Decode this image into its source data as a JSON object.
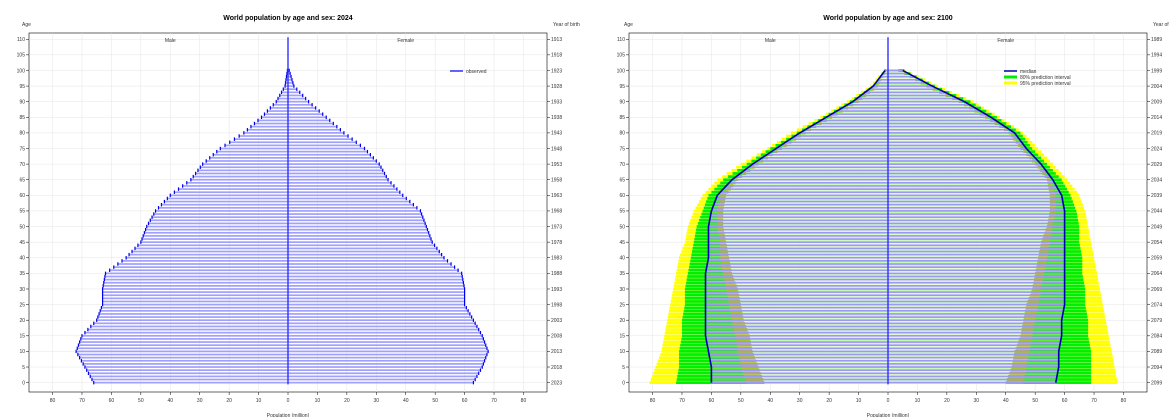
{
  "chart_data": [
    {
      "type": "bar",
      "title": "World population by age and sex: 2024",
      "ylabel_left": "Age",
      "ylabel_right": "Year of birth",
      "xlabel": "Population (million)",
      "male_label": "Male",
      "female_label": "Female",
      "xlim": [
        -88,
        88
      ],
      "xticks": [
        -80,
        -70,
        -60,
        -50,
        -40,
        -30,
        -20,
        -10,
        0,
        10,
        20,
        30,
        40,
        50,
        60,
        70,
        80
      ],
      "xtick_labels": [
        "80",
        "70",
        "60",
        "50",
        "40",
        "30",
        "20",
        "10",
        "0",
        "10",
        "20",
        "30",
        "40",
        "50",
        "60",
        "70",
        "80"
      ],
      "ylim": [
        -3,
        112
      ],
      "age_ticks": [
        0,
        5,
        10,
        15,
        20,
        25,
        30,
        35,
        40,
        45,
        50,
        55,
        60,
        65,
        70,
        75,
        80,
        85,
        90,
        95,
        100,
        105,
        110
      ],
      "birth_year_labels": [
        "2023",
        "2018",
        "2013",
        "2008",
        "2003",
        "1998",
        "1993",
        "1988",
        "1983",
        "1978",
        "1973",
        "1968",
        "1963",
        "1958",
        "1953",
        "1948",
        "1943",
        "1938",
        "1933",
        "1928",
        "1923",
        "1918",
        "1913"
      ],
      "legend": [
        "observed"
      ],
      "legend_position": "top-right",
      "grid": true,
      "colors": {
        "observed": "#0000ff"
      },
      "ages": [
        0,
        5,
        10,
        15,
        20,
        25,
        30,
        35,
        40,
        45,
        50,
        55,
        60,
        65,
        70,
        75,
        80,
        85,
        90,
        95,
        100,
        105,
        110
      ],
      "series": [
        {
          "name": "observed",
          "male": [
            66,
            69,
            72,
            70,
            65,
            63,
            63,
            62,
            55,
            50,
            48,
            45,
            40,
            33,
            29,
            23,
            15,
            9,
            4,
            1,
            0.2,
            0,
            0
          ],
          "female": [
            63,
            66,
            68,
            66,
            63,
            60,
            60,
            59,
            53,
            49,
            47,
            45,
            39,
            34,
            31,
            26,
            19,
            13,
            7,
            2,
            0.4,
            0,
            0
          ]
        }
      ]
    },
    {
      "type": "bar",
      "title": "World population by age and sex: 2100",
      "ylabel_left": "Age",
      "ylabel_right": "Year of bir",
      "xlabel": "Population (million)",
      "male_label": "Male",
      "female_label": "Female",
      "xlim": [
        -88,
        88
      ],
      "xticks": [
        -80,
        -70,
        -60,
        -50,
        -40,
        -30,
        -20,
        -10,
        0,
        10,
        20,
        30,
        40,
        50,
        60,
        70,
        80
      ],
      "xtick_labels": [
        "80",
        "70",
        "60",
        "50",
        "40",
        "30",
        "20",
        "10",
        "0",
        "10",
        "20",
        "30",
        "40",
        "50",
        "60",
        "70",
        "80"
      ],
      "ylim": [
        -3,
        112
      ],
      "age_ticks": [
        0,
        5,
        10,
        15,
        20,
        25,
        30,
        35,
        40,
        45,
        50,
        55,
        60,
        65,
        70,
        75,
        80,
        85,
        90,
        95,
        100,
        105,
        110
      ],
      "birth_year_labels": [
        "2099",
        "2094",
        "2089",
        "2084",
        "2079",
        "2074",
        "2069",
        "2064",
        "2059",
        "2054",
        "2049",
        "2044",
        "2039",
        "2034",
        "2029",
        "2024",
        "2019",
        "2014",
        "2009",
        "2004",
        "1999",
        "1994",
        "1989"
      ],
      "legend": [
        "median",
        "80% prediction interval",
        "95% prediction interval"
      ],
      "legend_position": "top-right",
      "grid": true,
      "colors": {
        "median": "#0000aa",
        "pi80": "#00ee00",
        "pi95": "#ffff00",
        "bars": "#9a9aee",
        "inner": "#c8aa30"
      },
      "ages": [
        0,
        5,
        10,
        15,
        20,
        25,
        30,
        35,
        40,
        45,
        50,
        55,
        60,
        65,
        70,
        75,
        80,
        85,
        90,
        95,
        100,
        105,
        110
      ],
      "series": [
        {
          "name": "median",
          "male": [
            60,
            60,
            61,
            62,
            62,
            62,
            62,
            62,
            61,
            61,
            61,
            60,
            58,
            53,
            46,
            38,
            30,
            21,
            12,
            5,
            1,
            0.2,
            0
          ],
          "female": [
            57,
            58,
            58,
            59,
            59,
            60,
            60,
            60,
            60,
            60,
            60,
            60,
            59,
            56,
            52,
            47,
            43,
            35,
            26,
            15,
            5,
            1,
            0
          ]
        },
        {
          "name": "pi80_low",
          "male": [
            48,
            50,
            51,
            52,
            53,
            54,
            55,
            56,
            57,
            57,
            58,
            58,
            57,
            52,
            45,
            37,
            29,
            20,
            11,
            4,
            0.8,
            0.1,
            0
          ],
          "female": [
            46,
            47,
            48,
            49,
            50,
            51,
            52,
            53,
            54,
            55,
            56,
            57,
            57,
            55,
            51,
            46,
            42,
            34,
            25,
            14,
            4,
            0.8,
            0
          ]
        },
        {
          "name": "pi80_high",
          "male": [
            72,
            71,
            71,
            70,
            70,
            69,
            69,
            68,
            67,
            66,
            65,
            63,
            61,
            56,
            48,
            40,
            31,
            22,
            13,
            5,
            1.2,
            0.3,
            0
          ],
          "female": [
            69,
            69,
            69,
            68,
            68,
            67,
            67,
            66,
            66,
            65,
            65,
            64,
            62,
            59,
            54,
            49,
            45,
            37,
            28,
            16,
            5.5,
            1.2,
            0
          ]
        },
        {
          "name": "pi95_low",
          "male": [
            42,
            44,
            46,
            47,
            49,
            50,
            51,
            53,
            54,
            55,
            56,
            56,
            55,
            51,
            44,
            36,
            28,
            19,
            10,
            3.5,
            0.6,
            0.1,
            0
          ],
          "female": [
            40,
            42,
            43,
            45,
            46,
            47,
            49,
            50,
            51,
            52,
            54,
            55,
            55,
            54,
            50,
            45,
            41,
            33,
            24,
            13,
            3.5,
            0.6,
            0
          ]
        },
        {
          "name": "pi95_high",
          "male": [
            81,
            79,
            77,
            76,
            75,
            74,
            73,
            72,
            71,
            69,
            68,
            66,
            63,
            58,
            50,
            41,
            33,
            23,
            14,
            6,
            1.5,
            0.4,
            0
          ],
          "female": [
            78,
            77,
            76,
            75,
            74,
            73,
            72,
            71,
            70,
            69,
            68,
            67,
            65,
            61,
            56,
            51,
            46,
            38,
            29,
            17,
            6,
            1.5,
            0
          ]
        }
      ]
    }
  ]
}
